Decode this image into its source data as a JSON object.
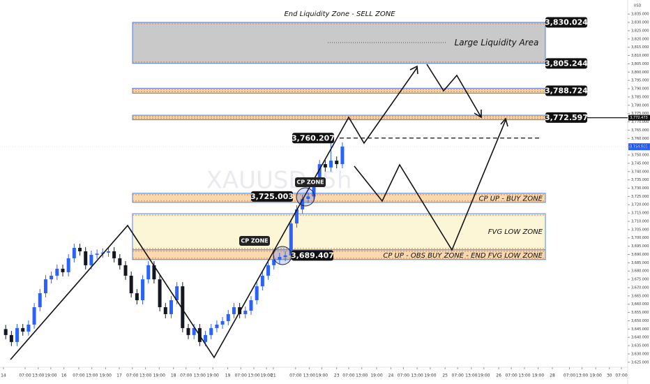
{
  "chart_data": {
    "type": "candlestick",
    "watermark": "XAUUSD, 5h",
    "axis_unit": "USD",
    "title": "End Liquidity Zone - SELL ZONE",
    "up_color": "#2962ff",
    "down_color": "#131722",
    "xlim": [
      0,
      110
    ],
    "xticks": [
      {
        "value": 0.6,
        "label": "14"
      },
      {
        "value": 4.4,
        "label": "07:00"
      },
      {
        "value": 6.7,
        "label": "13:00"
      },
      {
        "value": 8.9,
        "label": "19:00"
      },
      {
        "value": 11.2,
        "label": "16"
      },
      {
        "value": 13.8,
        "label": "07:00"
      },
      {
        "value": 16.1,
        "label": "13:00"
      },
      {
        "value": 18.5,
        "label": "19:00"
      },
      {
        "value": 20.9,
        "label": "17"
      },
      {
        "value": 23.2,
        "label": "07:00"
      },
      {
        "value": 25.5,
        "label": "13:00"
      },
      {
        "value": 27.9,
        "label": "19:00"
      },
      {
        "value": 30.4,
        "label": "18"
      },
      {
        "value": 32.6,
        "label": "07:00"
      },
      {
        "value": 35,
        "label": "13:00"
      },
      {
        "value": 37.3,
        "label": "19:00"
      },
      {
        "value": 39.9,
        "label": "19"
      },
      {
        "value": 42.2,
        "label": "07:00"
      },
      {
        "value": 44.5,
        "label": "13:00"
      },
      {
        "value": 46.7,
        "label": "19:00"
      },
      {
        "value": 47.9,
        "label": "21"
      },
      {
        "value": 51.8,
        "label": "07:00"
      },
      {
        "value": 54.2,
        "label": "13:00"
      },
      {
        "value": 56.4,
        "label": "19:00"
      },
      {
        "value": 59,
        "label": "23"
      },
      {
        "value": 61.1,
        "label": "07:00"
      },
      {
        "value": 63.4,
        "label": "13:00"
      },
      {
        "value": 66,
        "label": "19:00"
      },
      {
        "value": 68.5,
        "label": "24"
      },
      {
        "value": 70.7,
        "label": "07:00"
      },
      {
        "value": 73.1,
        "label": "13:00"
      },
      {
        "value": 75.4,
        "label": "19:00"
      },
      {
        "value": 78,
        "label": "25"
      },
      {
        "value": 80.2,
        "label": "07:00"
      },
      {
        "value": 82.6,
        "label": "13:00"
      },
      {
        "value": 84.8,
        "label": "19:00"
      },
      {
        "value": 87.4,
        "label": "26"
      },
      {
        "value": 89.6,
        "label": "07:00"
      },
      {
        "value": 91.9,
        "label": "13:00"
      },
      {
        "value": 94.3,
        "label": "19:00"
      },
      {
        "value": 96.8,
        "label": "28"
      },
      {
        "value": 99.8,
        "label": "07:00"
      },
      {
        "value": 102,
        "label": "13:00"
      },
      {
        "value": 104.4,
        "label": "19:00"
      },
      {
        "value": 106.8,
        "label": "30"
      },
      {
        "value": 108.9,
        "label": "07:00"
      }
    ],
    "ylim": [
      3624.5,
      3843.5
    ],
    "yticks": [
      {
        "value": 3625,
        "label": "3,625.000"
      },
      {
        "value": 3630,
        "label": "3,630.000"
      },
      {
        "value": 3635,
        "label": "3,635.000"
      },
      {
        "value": 3640,
        "label": "3,640.000"
      },
      {
        "value": 3645,
        "label": "3,645.000"
      },
      {
        "value": 3650,
        "label": "3,650.000"
      },
      {
        "value": 3655,
        "label": "3,655.000"
      },
      {
        "value": 3660,
        "label": "3,660.000"
      },
      {
        "value": 3665,
        "label": "3,665.000"
      },
      {
        "value": 3670,
        "label": "3,670.000"
      },
      {
        "value": 3675,
        "label": "3,675.000"
      },
      {
        "value": 3680,
        "label": "3,680.000"
      },
      {
        "value": 3685,
        "label": "3,685.000"
      },
      {
        "value": 3690,
        "label": "3,690.000"
      },
      {
        "value": 3695,
        "label": "3,695.000"
      },
      {
        "value": 3700,
        "label": "3,700.000"
      },
      {
        "value": 3705,
        "label": "3,705.000"
      },
      {
        "value": 3710,
        "label": "3,710.000"
      },
      {
        "value": 3715,
        "label": "3,715.000"
      },
      {
        "value": 3720,
        "label": "3,720.000"
      },
      {
        "value": 3725,
        "label": "3,725.000"
      },
      {
        "value": 3730,
        "label": "3,730.000"
      },
      {
        "value": 3735,
        "label": "3,735.000"
      },
      {
        "value": 3740,
        "label": "3,740.000"
      },
      {
        "value": 3745,
        "label": "3,745.000"
      },
      {
        "value": 3750,
        "label": "3,750.000"
      },
      {
        "value": 3755,
        "label": "3,755.000"
      },
      {
        "value": 3760,
        "label": "3,760.000"
      },
      {
        "value": 3765,
        "label": "3,765.000"
      },
      {
        "value": 3770,
        "label": "3,770.000"
      },
      {
        "value": 3775,
        "label": "3,775.000"
      },
      {
        "value": 3780,
        "label": "3,780.000"
      },
      {
        "value": 3785,
        "label": "3,785.000"
      },
      {
        "value": 3790,
        "label": "3,790.000"
      },
      {
        "value": 3795,
        "label": "3,795.000"
      },
      {
        "value": 3800,
        "label": "3,800.000"
      },
      {
        "value": 3805,
        "label": "3,805.000"
      },
      {
        "value": 3810,
        "label": "3,810.000"
      },
      {
        "value": 3815,
        "label": "3,815.000"
      },
      {
        "value": 3820,
        "label": "3,820.000"
      },
      {
        "value": 3825,
        "label": "3,825.000"
      },
      {
        "value": 3830,
        "label": "3,830.000"
      },
      {
        "value": 3835,
        "label": "3,835.000"
      }
    ],
    "x": [
      1,
      2,
      3,
      4,
      5,
      6,
      7,
      8,
      9,
      10,
      11,
      12,
      13,
      14,
      15,
      16,
      17,
      18,
      19,
      20,
      21,
      22,
      23,
      24,
      25,
      26,
      27,
      28,
      29,
      30,
      31,
      32,
      33,
      34,
      35,
      36,
      37,
      38,
      39,
      40,
      41,
      42,
      43,
      44,
      45,
      46,
      47,
      48,
      49,
      50,
      51,
      52,
      53,
      54,
      55,
      56,
      57,
      58,
      59,
      60
    ],
    "open": [
      3645.0,
      3641.4,
      3637.2,
      3645.6,
      3643.5,
      3647.7,
      3658.2,
      3666.6,
      3675.0,
      3677.2,
      3681.4,
      3679.3,
      3687.7,
      3694.0,
      3691.9,
      3683.5,
      3689.8,
      3690.5,
      3691.1,
      3691.9,
      3687.7,
      3683.5,
      3677.2,
      3666.6,
      3662.4,
      3675.0,
      3683.5,
      3675.0,
      3658.2,
      3654.0,
      3662.4,
      3670.8,
      3645.6,
      3641.4,
      3645.6,
      3637.2,
      3641.4,
      3645.6,
      3647.7,
      3649.8,
      3654.0,
      3658.2,
      3654.0,
      3656.1,
      3662.4,
      3670.8,
      3677.2,
      3683.5,
      3686.8,
      3688.5,
      3689.4,
      3708.7,
      3717.2,
      3723.5,
      3725.0,
      3734.0,
      3744.5,
      3742.5,
      3746.6,
      3744.5
    ],
    "high": [
      3647.5,
      3643.9,
      3648.1,
      3648.1,
      3650.2,
      3660.7,
      3669.1,
      3677.5,
      3679.7,
      3683.9,
      3683.9,
      3690.2,
      3696.5,
      3696.5,
      3694.4,
      3692.3,
      3693.0,
      3693.6,
      3694.4,
      3694.4,
      3690.2,
      3686.0,
      3679.7,
      3669.1,
      3677.5,
      3686.0,
      3686.0,
      3677.5,
      3660.7,
      3664.9,
      3673.3,
      3673.3,
      3648.1,
      3648.1,
      3648.1,
      3643.9,
      3648.1,
      3650.2,
      3652.3,
      3656.5,
      3660.7,
      3660.7,
      3658.6,
      3664.9,
      3673.3,
      3679.7,
      3686.0,
      3689.3,
      3691.0,
      3691.9,
      3711.2,
      3719.7,
      3726.0,
      3727.5,
      3736.5,
      3747.0,
      3747.0,
      3760.2,
      3749.1,
      3757.6
    ],
    "low": [
      3638.9,
      3634.7,
      3634.7,
      3641.0,
      3641.0,
      3645.2,
      3655.7,
      3664.1,
      3672.5,
      3674.7,
      3676.8,
      3676.8,
      3685.2,
      3689.4,
      3681.0,
      3681.0,
      3687.3,
      3688.0,
      3688.6,
      3685.2,
      3681.0,
      3674.7,
      3664.1,
      3659.9,
      3659.9,
      3672.5,
      3672.5,
      3655.7,
      3651.5,
      3651.5,
      3659.9,
      3643.1,
      3638.9,
      3638.9,
      3634.7,
      3634.7,
      3638.9,
      3643.1,
      3645.2,
      3647.3,
      3651.5,
      3651.5,
      3651.5,
      3653.6,
      3659.9,
      3668.3,
      3674.7,
      3681.0,
      3684.3,
      3686.0,
      3686.9,
      3706.2,
      3714.7,
      3721.0,
      3722.5,
      3731.5,
      3740.0,
      3740.0,
      3742.0,
      3742.0
    ],
    "close": [
      3641.4,
      3637.2,
      3645.6,
      3643.5,
      3647.7,
      3658.2,
      3666.6,
      3675.0,
      3677.2,
      3681.4,
      3679.3,
      3687.7,
      3694.0,
      3691.9,
      3683.5,
      3689.8,
      3690.5,
      3691.1,
      3691.9,
      3687.7,
      3683.5,
      3677.2,
      3666.6,
      3662.4,
      3675.0,
      3683.5,
      3675.0,
      3658.2,
      3654.0,
      3662.4,
      3670.8,
      3645.6,
      3641.4,
      3645.6,
      3637.2,
      3641.4,
      3645.6,
      3647.7,
      3649.8,
      3654.0,
      3658.2,
      3654.0,
      3656.1,
      3662.4,
      3670.8,
      3677.2,
      3683.5,
      3686.8,
      3688.5,
      3689.4,
      3708.7,
      3717.2,
      3723.5,
      3725.0,
      3734.0,
      3744.5,
      3742.5,
      3746.6,
      3744.5,
      3755.1
    ],
    "zones": [
      {
        "label": "Large Liquidity Area",
        "from": 3805.244,
        "to": 3830.024,
        "color": "#c9c9c9"
      },
      {
        "from": 3787.3,
        "to": 3790.3,
        "color": "#f6d3a6"
      },
      {
        "from": 3771.2,
        "to": 3774.0,
        "color": "#f6d3a6"
      },
      {
        "label": "CP UP - BUY ZONE",
        "from": 3721.4,
        "to": 3726.9,
        "color": "#fbd8ad"
      },
      {
        "label": "FVG LOW ZONE",
        "from": 3692.8,
        "to": 3714.6,
        "color": "#fdf6d6"
      },
      {
        "label": "CP UP - OBS BUY ZONE - END FVG LOW ZONE",
        "from": 3686.9,
        "to": 3692.8,
        "color": "#fbd8ad"
      }
    ],
    "price_tags": [
      {
        "value": 3830.024,
        "label": "3,830.024"
      },
      {
        "value": 3805.244,
        "label": "3,805.244"
      },
      {
        "value": 3788.724,
        "label": "3,788.724"
      },
      {
        "value": 3772.597,
        "label": "3,772.597"
      },
      {
        "value": 3760.207,
        "label": "3,760.207"
      },
      {
        "value": 3725.003,
        "label": "3,725.003"
      },
      {
        "value": 3689.407,
        "label": "3,689.407"
      }
    ],
    "cp_zones": [
      "CP ZONE",
      "CP ZONE"
    ],
    "last_price": {
      "value": 3754.985,
      "label": "3,754.985"
    },
    "target_line": {
      "value": 3772.473,
      "label": "3,772.473"
    }
  }
}
